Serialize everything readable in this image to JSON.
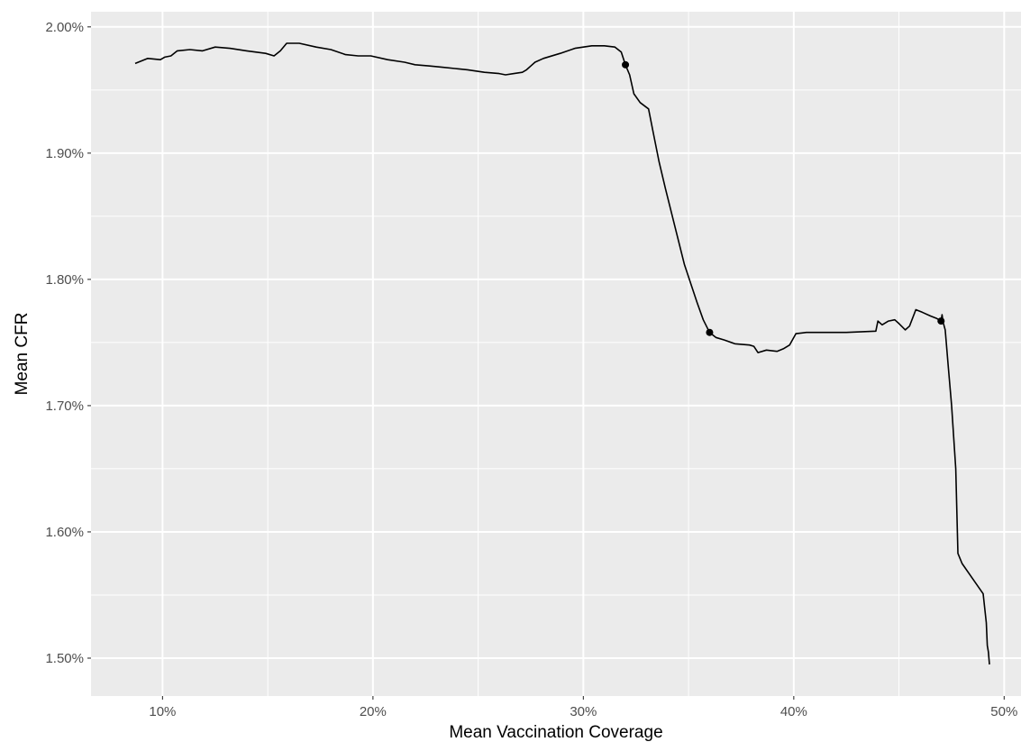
{
  "chart_data": {
    "type": "line",
    "title": "",
    "xlabel": "Mean Vaccination Coverage",
    "ylabel": "Mean CFR",
    "xlim": [
      6.6,
      50.8
    ],
    "ylim": [
      1.47,
      2.012
    ],
    "x_ticks": [
      {
        "value": 10,
        "label": "10%"
      },
      {
        "value": 20,
        "label": "20%"
      },
      {
        "value": 30,
        "label": "30%"
      },
      {
        "value": 40,
        "label": "40%"
      },
      {
        "value": 50,
        "label": "50%"
      }
    ],
    "y_ticks": [
      {
        "value": 1.5,
        "label": "1.50%"
      },
      {
        "value": 1.6,
        "label": "1.60%"
      },
      {
        "value": 1.7,
        "label": "1.70%"
      },
      {
        "value": 1.8,
        "label": "1.80%"
      },
      {
        "value": 1.9,
        "label": "1.90%"
      },
      {
        "value": 2.0,
        "label": "2.00%"
      }
    ],
    "grid": true,
    "series": [
      {
        "color": "#000000",
        "x": [
          8.7,
          9.3,
          9.9,
          10.1,
          10.4,
          10.7,
          11.3,
          11.9,
          12.5,
          13.2,
          14.0,
          14.9,
          15.3,
          15.6,
          15.9,
          16.5,
          17.3,
          18.0,
          18.7,
          19.3,
          19.9,
          20.7,
          21.5,
          22.0,
          22.7,
          23.3,
          23.9,
          24.5,
          25.3,
          26.0,
          26.3,
          26.7,
          27.1,
          27.3,
          27.5,
          27.7,
          28.1,
          28.9,
          29.6,
          30.4,
          31.0,
          31.5,
          31.8,
          32.0,
          32.2,
          32.4,
          32.7,
          33.1,
          33.3,
          33.6,
          33.9,
          34.2,
          34.5,
          34.8,
          35.1,
          35.4,
          35.7,
          36.0,
          36.3,
          36.7,
          37.2,
          37.9,
          38.1,
          38.3,
          38.7,
          39.2,
          39.5,
          39.8,
          40.1,
          40.6,
          41.5,
          42.5,
          43.9,
          44.0,
          44.2,
          44.5,
          44.8,
          45.0,
          45.3,
          45.5,
          45.8,
          46.1,
          46.5,
          46.8,
          47.0,
          47.05,
          47.1,
          47.2,
          47.35,
          47.5,
          47.6,
          47.7,
          47.8,
          48.0,
          48.5,
          49.0,
          49.15,
          49.2,
          49.25,
          49.3
        ],
        "y": [
          1.971,
          1.975,
          1.974,
          1.976,
          1.977,
          1.981,
          1.982,
          1.981,
          1.984,
          1.983,
          1.981,
          1.979,
          1.977,
          1.981,
          1.987,
          1.987,
          1.984,
          1.982,
          1.978,
          1.977,
          1.977,
          1.974,
          1.972,
          1.97,
          1.969,
          1.968,
          1.967,
          1.966,
          1.964,
          1.963,
          1.962,
          1.963,
          1.964,
          1.966,
          1.969,
          1.972,
          1.975,
          1.979,
          1.983,
          1.985,
          1.985,
          1.984,
          1.98,
          1.97,
          1.962,
          1.947,
          1.94,
          1.935,
          1.918,
          1.893,
          1.872,
          1.852,
          1.832,
          1.812,
          1.797,
          1.782,
          1.768,
          1.758,
          1.754,
          1.752,
          1.749,
          1.748,
          1.747,
          1.742,
          1.744,
          1.743,
          1.745,
          1.748,
          1.757,
          1.758,
          1.758,
          1.758,
          1.759,
          1.767,
          1.764,
          1.767,
          1.768,
          1.765,
          1.76,
          1.763,
          1.776,
          1.774,
          1.771,
          1.769,
          1.767,
          1.772,
          1.766,
          1.76,
          1.73,
          1.7,
          1.675,
          1.65,
          1.583,
          1.575,
          1.563,
          1.551,
          1.528,
          1.51,
          1.505,
          1.495
        ]
      }
    ],
    "points": [
      {
        "x": 32.0,
        "y": 1.97
      },
      {
        "x": 36.0,
        "y": 1.758
      },
      {
        "x": 47.0,
        "y": 1.767
      }
    ]
  }
}
